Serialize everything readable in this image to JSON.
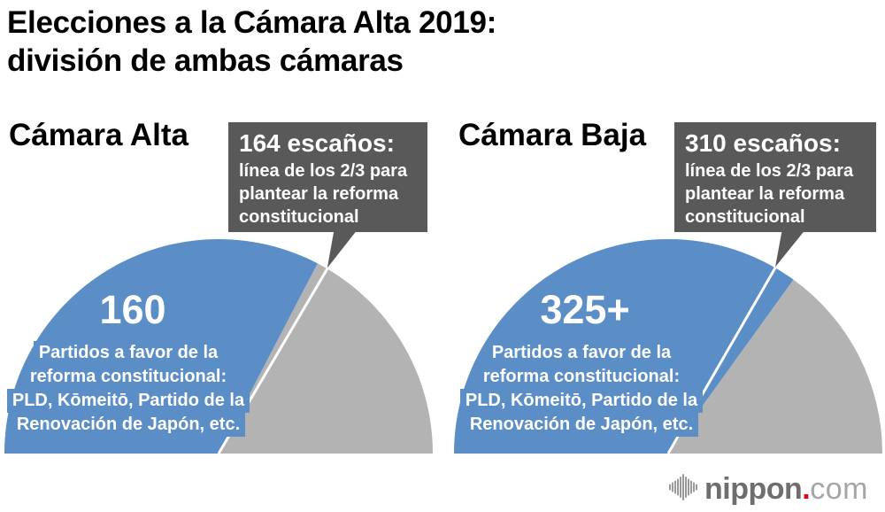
{
  "page_title": "Elecciones a la Cámara Alta 2019:\ndivisión de ambas cámaras",
  "colors": {
    "reform_blue": "#5b8ec6",
    "other_gray": "#b3b3b3",
    "callout_bg": "#595959",
    "threshold_line": "#ffffff",
    "title_text": "#000000",
    "logo_brand": "#6e6e6e",
    "logo_tld": "#a6a6a6",
    "logo_dot": "#e60012",
    "logo_icon": "#999999"
  },
  "chart_data": [
    {
      "type": "pie",
      "shape": "semicircle",
      "header": "Cámara Alta",
      "total_seats": 245,
      "segments": [
        {
          "name": "reform-supporting-parties",
          "value": 160,
          "display_value": "160",
          "label": "Partidos a favor de la\nreforma constitucional:\nPLD, Kōmeitō, Partido de la\nRenovación de Japón, etc.",
          "color": "#5b8ec6"
        },
        {
          "name": "other-parties",
          "value": 85,
          "label": "",
          "color": "#b3b3b3"
        }
      ],
      "threshold": {
        "value": 164,
        "title": "164 escaños:",
        "note": "línea de los 2/3 para\nplantear la reforma\nconstitucional"
      }
    },
    {
      "type": "pie",
      "shape": "semicircle",
      "header": "Cámara Baja",
      "total_seats": 465,
      "segments": [
        {
          "name": "reform-supporting-parties",
          "value": 325,
          "display_value": "325+",
          "label": "Partidos a favor de la\nreforma constitucional:\nPLD, Kōmeitō, Partido de la\nRenovación de Japón, etc.",
          "color": "#5b8ec6"
        },
        {
          "name": "other-parties",
          "value": 140,
          "label": "",
          "color": "#b3b3b3"
        }
      ],
      "threshold": {
        "value": 310,
        "title": "310 escaños:",
        "note": "línea de los 2/3 para\nplantear la reforma\nconstitucional"
      }
    }
  ],
  "logo": {
    "brand": "nippon",
    "dot": ".",
    "tld": "com"
  }
}
